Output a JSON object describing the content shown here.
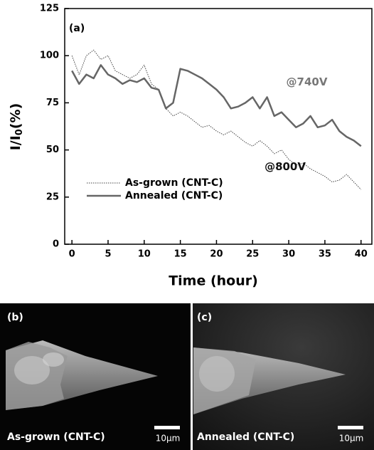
{
  "chart_data": {
    "type": "line",
    "panel_label": "(a)",
    "xlabel": "Time (hour)",
    "ylabel": {
      "main": "I/I",
      "sub": "0",
      "unit": "(%)"
    },
    "x": [
      0,
      1,
      2,
      3,
      4,
      5,
      6,
      7,
      8,
      9,
      10,
      11,
      12,
      13,
      14,
      15,
      16,
      17,
      18,
      19,
      20,
      21,
      22,
      23,
      24,
      25,
      26,
      27,
      28,
      29,
      30,
      31,
      32,
      33,
      34,
      35,
      36,
      37,
      38,
      39,
      40
    ],
    "series": [
      {
        "name": "As-grown (CNT-C)",
        "color": "#444444",
        "dashed": true,
        "values": [
          100,
          90,
          100,
          103,
          98,
          100,
          92,
          90,
          88,
          90,
          95,
          85,
          82,
          72,
          68,
          70,
          68,
          65,
          62,
          63,
          60,
          58,
          60,
          57,
          54,
          52,
          55,
          52,
          48,
          50,
          45,
          42,
          43,
          40,
          38,
          36,
          33,
          34,
          37,
          33,
          29
        ]
      },
      {
        "name": "Annealed (CNT-C)",
        "color": "#666666",
        "dashed": false,
        "values": [
          92,
          85,
          90,
          88,
          95,
          90,
          88,
          85,
          87,
          86,
          88,
          83,
          82,
          72,
          75,
          93,
          92,
          90,
          88,
          85,
          82,
          78,
          72,
          73,
          75,
          78,
          72,
          78,
          68,
          70,
          66,
          62,
          64,
          68,
          62,
          63,
          66,
          60,
          57,
          55,
          52
        ]
      }
    ],
    "annotations": [
      {
        "text": "@740V",
        "x": 32.5,
        "y": 86,
        "color": "#777777"
      },
      {
        "text": "@800V",
        "x": 29.5,
        "y": 41,
        "color": "#111111"
      }
    ],
    "xlim": [
      -1,
      41.5
    ],
    "ylim": [
      0,
      125
    ],
    "xticks": [
      0,
      5,
      10,
      15,
      20,
      25,
      30,
      35,
      40
    ],
    "yticks": [
      0,
      25,
      50,
      75,
      100,
      125
    ]
  },
  "panels": [
    {
      "label": "(b)",
      "caption": "As-grown (CNT-C)",
      "scale": "10μm"
    },
    {
      "label": "(c)",
      "caption": "Annealed (CNT-C)",
      "scale": "10μm"
    }
  ]
}
